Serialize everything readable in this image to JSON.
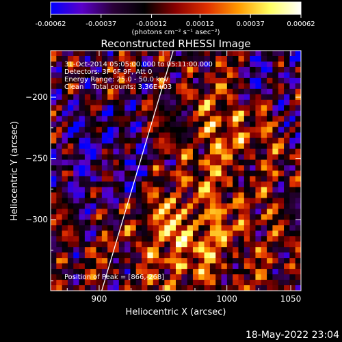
{
  "chart_data": {
    "type": "heatmap",
    "title": "Reconstructed RHESSI Image",
    "xlabel": "Heliocentric X (arcsec)",
    "ylabel": "Heliocentric Y (arcsec)",
    "xlim": [
      862,
      1058
    ],
    "ylim": [
      -358,
      -162
    ],
    "x_ticks": [
      900,
      950,
      1000,
      1050
    ],
    "y_ticks": [
      -200,
      -250,
      -300
    ],
    "colorbar": {
      "vmin": -0.00062,
      "vmax": 0.00062,
      "tick_values": [
        -0.00062,
        -0.00037,
        -0.00012,
        0.00012,
        0.00037,
        0.00062
      ],
      "tick_labels": [
        "-0.00062",
        "-0.00037",
        "-0.00012",
        "0.00012",
        "0.00037",
        "0.00062"
      ],
      "unit_label": "(photons cm⁻² s⁻¹ asec⁻²)",
      "colormap": [
        "#0000ff",
        "#5a00c8",
        "#2a0038",
        "#000000",
        "#8a0000",
        "#e03000",
        "#ff9a00",
        "#ffff60",
        "#ffffff"
      ]
    },
    "annotations": [
      "31-Oct-2014 05:05:00.000 to 05:11:00.000",
      "Detectors: 3F 6F 9F, Att 0",
      "Energy Range: 25.0 - 50.0 keV",
      "Clean    Total counts: 3.36E+03"
    ],
    "peak": {
      "label": "Position of Peak = [866,-268]",
      "x": 866,
      "y": -268
    },
    "limb_line": [
      [
        902,
        -358
      ],
      [
        958,
        -162
      ]
    ],
    "grid": false,
    "legend": "none",
    "timestamp": "18-May-2022 23:04"
  }
}
